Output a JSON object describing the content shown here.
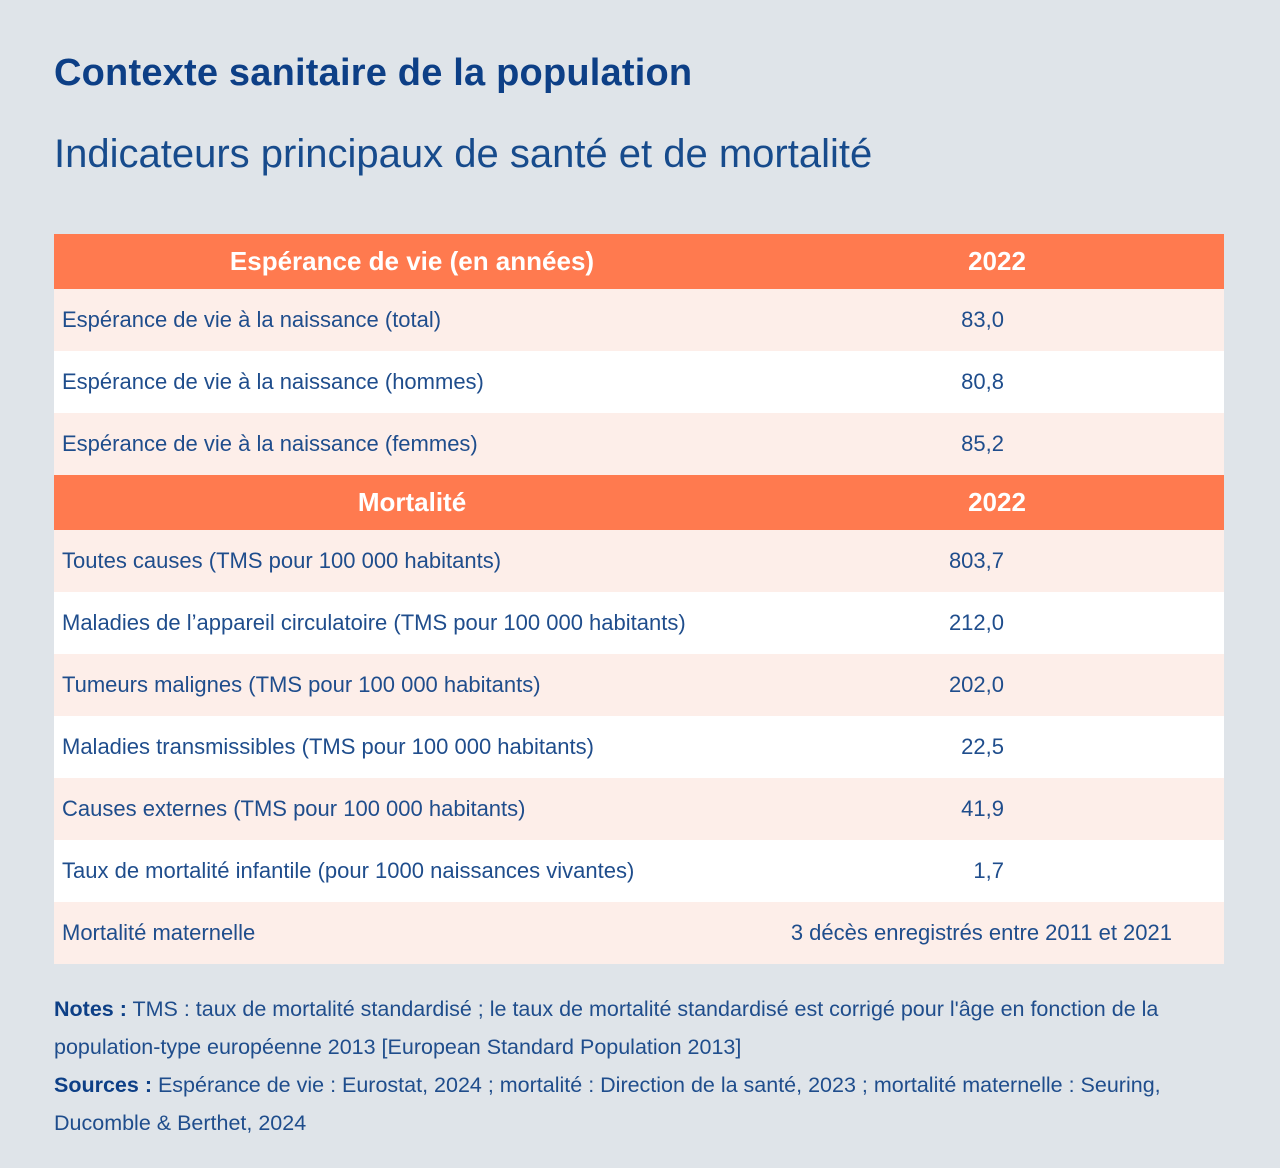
{
  "title": "Contexte sanitaire de la population",
  "subtitle": "Indicateurs principaux de santé et de mortalité",
  "sections": [
    {
      "header": "Espérance de vie (en années)",
      "year": "2022",
      "rows": [
        {
          "label": "Espérance de vie à la naissance (total)",
          "value": "83,0"
        },
        {
          "label": "Espérance de vie à la naissance (hommes)",
          "value": "80,8"
        },
        {
          "label": "Espérance de vie à la naissance (femmes)",
          "value": "85,2"
        }
      ]
    },
    {
      "header": "Mortalité",
      "year": "2022",
      "rows": [
        {
          "label": "Toutes causes (TMS pour 100 000 habitants)",
          "value": "803,7"
        },
        {
          "label": "Maladies de l’appareil circulatoire (TMS pour 100 000 habitants)",
          "value": "212,0"
        },
        {
          "label": "Tumeurs malignes (TMS pour 100 000 habitants)",
          "value": "202,0"
        },
        {
          "label": "Maladies transmissibles (TMS pour 100 000 habitants)",
          "value": "22,5"
        },
        {
          "label": "Causes externes (TMS pour 100 000 habitants)",
          "value": "41,9"
        },
        {
          "label": "Taux de mortalité infantile (pour 1000 naissances vivantes)",
          "value": "1,7"
        },
        {
          "label": "Mortalité maternelle",
          "value": "3 décès enregistrés entre 2011 et 2021"
        }
      ]
    }
  ],
  "notes": {
    "notes_label": "Notes :",
    "notes_text": " TMS : taux de mortalité standardisé ; le taux de mortalité standardisé est corrigé pour l'âge en fonction de la population-type européenne 2013 [European Standard Population 2013]",
    "sources_label": "Sources :",
    "sources_text": " Espérance de vie : Eurostat, 2024 ; mortalité : Direction de la santé, 2023 ; mortalité maternelle : Seuring, Ducomble & Berthet, 2024"
  },
  "colors": {
    "header_bg": "#ff7a4f",
    "row_tint": "#fdeee9",
    "row_plain": "#ffffff",
    "page_bg": "#dfe4e9",
    "title": "#0d3f86"
  }
}
